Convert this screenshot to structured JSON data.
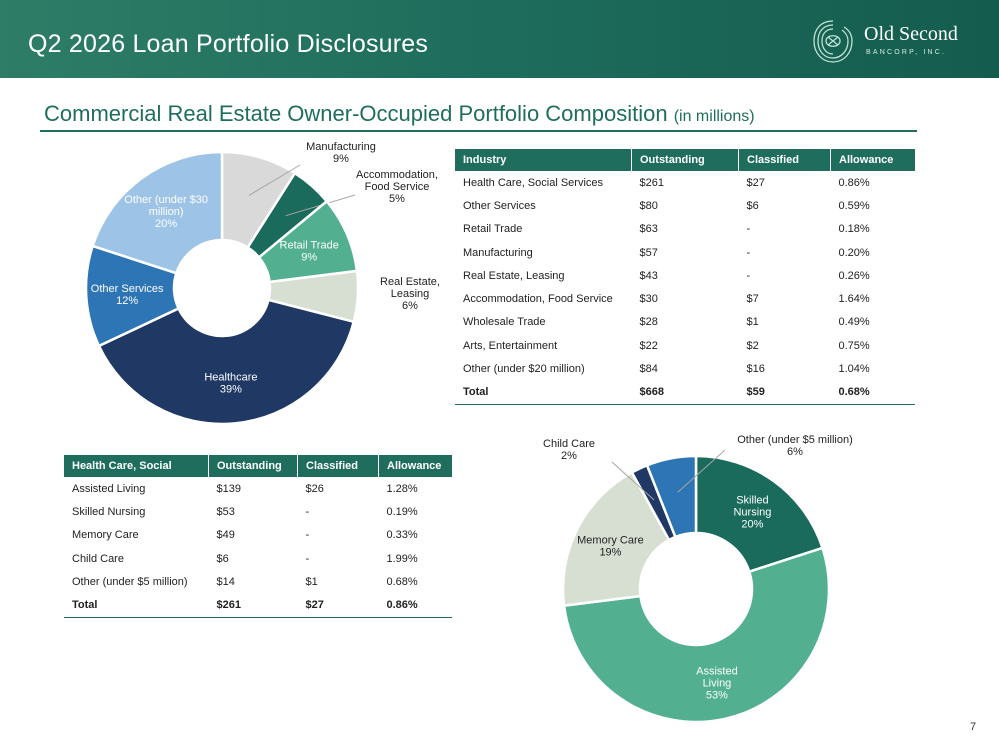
{
  "header": {
    "title": "Q2 2026 Loan Portfolio Disclosures",
    "logo_name": "Old Second",
    "logo_sub": "BANCORP, INC."
  },
  "section": {
    "title": "Commercial Real Estate Owner-Occupied Portfolio Composition",
    "unit": "(in millions)"
  },
  "colors": {
    "brand_green": "#1f6e5d",
    "manufacturing": "#d9d9d9",
    "accommodation": "#1a6b5b",
    "retail": "#52b091",
    "real_estate": "#d7dfd3",
    "healthcare": "#203864",
    "other_services": "#2e75b6",
    "other_under_30": "#9dc3e6",
    "skilled_nursing": "#1a6b5b",
    "assisted_living": "#52b091",
    "memory_care": "#d7dfd3",
    "child_care": "#203864",
    "other_under_5": "#2e75b6"
  },
  "industry_table": {
    "headers": [
      "Industry",
      "Outstanding",
      "Classified",
      "Allowance"
    ],
    "rows": [
      [
        "Health Care, Social Services",
        "$261",
        "$27",
        "0.86%"
      ],
      [
        "Other Services",
        "$80",
        "$6",
        "0.59%"
      ],
      [
        "Retail Trade",
        "$63",
        "-",
        "0.18%"
      ],
      [
        "Manufacturing",
        "$57",
        "-",
        "0.20%"
      ],
      [
        "Real Estate, Leasing",
        "$43",
        "-",
        "0.26%"
      ],
      [
        "Accommodation, Food Service",
        "$30",
        "$7",
        "1.64%"
      ],
      [
        "Wholesale Trade",
        "$28",
        "$1",
        "0.49%"
      ],
      [
        "Arts, Entertainment",
        "$22",
        "$2",
        "0.75%"
      ],
      [
        "Other (under $20 million)",
        "$84",
        "$16",
        "1.04%"
      ]
    ],
    "total": [
      "Total",
      "$668",
      "$59",
      "0.68%"
    ]
  },
  "hc_table": {
    "headers": [
      "Health Care, Social",
      "Outstanding",
      "Classified",
      "Allowance"
    ],
    "rows": [
      [
        "Assisted Living",
        "$139",
        "$26",
        "1.28%"
      ],
      [
        "Skilled Nursing",
        "$53",
        "-",
        "0.19%"
      ],
      [
        "Memory Care",
        "$49",
        "-",
        "0.33%"
      ],
      [
        "Child Care",
        "$6",
        "-",
        "1.99%"
      ],
      [
        "Other (under $5 million)",
        "$14",
        "$1",
        "0.68%"
      ]
    ],
    "total": [
      "Total",
      "$261",
      "$27",
      "0.86%"
    ]
  },
  "chart_data": [
    {
      "type": "pie",
      "donut": true,
      "start": "top",
      "direction": "clockwise",
      "slices": [
        {
          "label": "Manufacturing",
          "value": 9,
          "display": "9%",
          "color": "#d9d9d9",
          "label_pos": "outside"
        },
        {
          "label": "Accommodation, Food Service",
          "value": 5,
          "display": "5%",
          "color": "#1a6b5b",
          "label_pos": "outside"
        },
        {
          "label": "Retail Trade",
          "value": 9,
          "display": "9%",
          "color": "#52b091",
          "label_pos": "inside"
        },
        {
          "label": "Real Estate, Leasing",
          "value": 6,
          "display": "6%",
          "color": "#d7dfd3",
          "label_pos": "outside"
        },
        {
          "label": "Healthcare",
          "value": 39,
          "display": "39%",
          "color": "#203864",
          "label_pos": "inside"
        },
        {
          "label": "Other Services",
          "value": 12,
          "display": "12%",
          "color": "#2e75b6",
          "label_pos": "inside"
        },
        {
          "label": "Other (under $30 million)",
          "value": 20,
          "display": "20%",
          "color": "#9dc3e6",
          "label_pos": "inside"
        }
      ]
    },
    {
      "type": "pie",
      "donut": true,
      "start": "top",
      "direction": "clockwise",
      "slices": [
        {
          "label": "Skilled Nursing",
          "value": 20,
          "display": "20%",
          "color": "#1a6b5b",
          "label_pos": "inside"
        },
        {
          "label": "Assisted Living",
          "value": 53,
          "display": "53%",
          "color": "#52b091",
          "label_pos": "inside"
        },
        {
          "label": "Memory Care",
          "value": 19,
          "display": "19%",
          "color": "#d7dfd3",
          "label_pos": "inside"
        },
        {
          "label": "Child Care",
          "value": 2,
          "display": "2%",
          "color": "#203864",
          "label_pos": "outside"
        },
        {
          "label": "Other (under $5 million)",
          "value": 6,
          "display": "6%",
          "color": "#2e75b6",
          "label_pos": "outside"
        }
      ]
    }
  ],
  "page_number": "7"
}
